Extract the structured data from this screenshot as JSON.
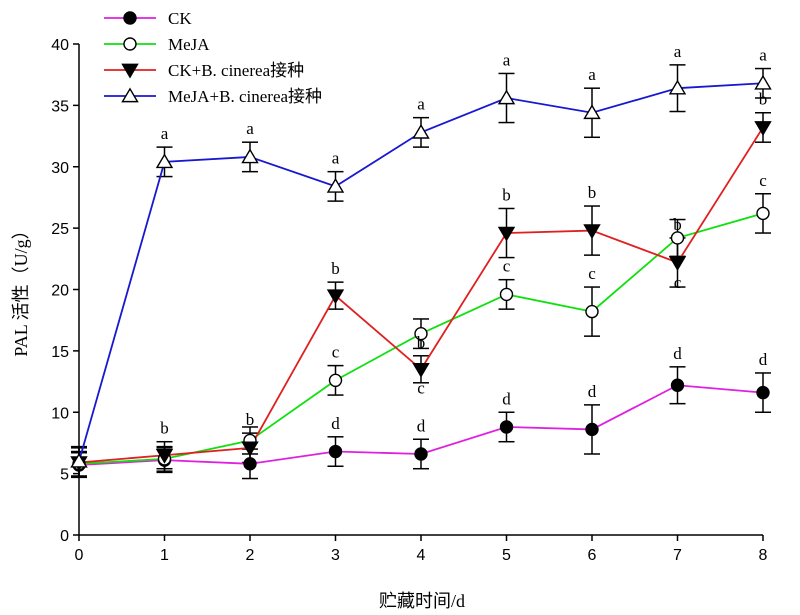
{
  "chart_data": {
    "type": "line",
    "xlabel": "贮藏时间/d",
    "ylabel": "PAL 活性（U/g）",
    "xlim": [
      0,
      8
    ],
    "ylim": [
      0,
      40
    ],
    "x_ticks": [
      0,
      1,
      2,
      3,
      4,
      5,
      6,
      7,
      8
    ],
    "y_ticks": [
      0,
      5,
      10,
      15,
      20,
      25,
      30,
      35,
      40
    ],
    "grid": false,
    "legend_position": "top-left",
    "x": [
      0,
      1,
      2,
      3,
      4,
      5,
      6,
      7,
      8
    ],
    "series": [
      {
        "name": "CK",
        "color": "#e020e0",
        "marker": "filled-circle",
        "values": [
          5.7,
          6.1,
          5.8,
          6.8,
          6.6,
          8.8,
          8.6,
          12.2,
          11.6
        ],
        "errors": [
          1.0,
          1.0,
          1.2,
          1.2,
          1.2,
          1.2,
          2.0,
          1.5,
          1.6
        ],
        "sig_labels": [
          "",
          "",
          "",
          "d",
          "d",
          "d",
          "d",
          "d",
          "d"
        ]
      },
      {
        "name": "MeJA",
        "color": "#10e010",
        "marker": "open-circle",
        "values": [
          5.8,
          6.2,
          7.7,
          12.6,
          16.4,
          19.6,
          18.2,
          24.2,
          26.2
        ],
        "errors": [
          1.0,
          1.0,
          1.1,
          1.2,
          1.2,
          1.2,
          2.0,
          1.5,
          1.6
        ],
        "sig_labels": [
          "",
          "",
          "",
          "c",
          "",
          "c",
          "c",
          "",
          "c"
        ]
      },
      {
        "name": "CK+B. cinerea接种",
        "color": "#e02020",
        "marker": "filled-triangle-down",
        "values": [
          5.9,
          6.5,
          7.1,
          19.5,
          13.5,
          24.6,
          24.8,
          22.2,
          33.2
        ],
        "errors": [
          1.2,
          1.1,
          1.2,
          1.1,
          1.1,
          2.0,
          2.0,
          2.0,
          1.2
        ],
        "sig_labels": [
          "",
          "b",
          "b",
          "b",
          "b",
          "b",
          "b",
          "b",
          "b"
        ]
      },
      {
        "name": "MeJA+B. cinerea接种",
        "color": "#1818d0",
        "marker": "open-triangle-up",
        "values": [
          6.0,
          30.4,
          30.8,
          28.4,
          32.8,
          35.6,
          34.4,
          36.4,
          36.8
        ],
        "errors": [
          1.2,
          1.2,
          1.2,
          1.2,
          1.2,
          2.0,
          2.0,
          1.9,
          1.2
        ],
        "sig_labels": [
          "",
          "a",
          "a",
          "a",
          "a",
          "a",
          "a",
          "a",
          "a"
        ]
      }
    ],
    "annotations": [
      {
        "text": "c",
        "x": 4,
        "y": 12.0
      },
      {
        "text": "c",
        "x": 7,
        "y": 20.6
      }
    ]
  }
}
